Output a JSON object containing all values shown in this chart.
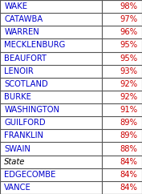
{
  "rows": [
    {
      "label": "WAKE",
      "value": "98%",
      "label_color": "#0000CC",
      "value_color": "#CC0000",
      "italic": false
    },
    {
      "label": "CATAWBA",
      "value": "97%",
      "label_color": "#0000CC",
      "value_color": "#CC0000",
      "italic": false
    },
    {
      "label": "WARREN",
      "value": "96%",
      "label_color": "#0000CC",
      "value_color": "#CC0000",
      "italic": false
    },
    {
      "label": "MECKLENBURG",
      "value": "95%",
      "label_color": "#0000CC",
      "value_color": "#CC0000",
      "italic": false
    },
    {
      "label": "BEAUFORT",
      "value": "95%",
      "label_color": "#0000CC",
      "value_color": "#CC0000",
      "italic": false
    },
    {
      "label": "LENOIR",
      "value": "93%",
      "label_color": "#0000CC",
      "value_color": "#CC0000",
      "italic": false
    },
    {
      "label": "SCOTLAND",
      "value": "92%",
      "label_color": "#0000CC",
      "value_color": "#CC0000",
      "italic": false
    },
    {
      "label": "BURKE",
      "value": "92%",
      "label_color": "#0000CC",
      "value_color": "#CC0000",
      "italic": false
    },
    {
      "label": "WASHINGTON",
      "value": "91%",
      "label_color": "#0000CC",
      "value_color": "#CC0000",
      "italic": false
    },
    {
      "label": "GUILFORD",
      "value": "89%",
      "label_color": "#0000CC",
      "value_color": "#CC0000",
      "italic": false
    },
    {
      "label": "FRANKLIN",
      "value": "89%",
      "label_color": "#0000CC",
      "value_color": "#CC0000",
      "italic": false
    },
    {
      "label": "SWAIN",
      "value": "88%",
      "label_color": "#0000CC",
      "value_color": "#CC0000",
      "italic": false
    },
    {
      "label": "State",
      "value": "84%",
      "label_color": "#000000",
      "value_color": "#CC0000",
      "italic": true
    },
    {
      "label": "EDGECOMBE",
      "value": "84%",
      "label_color": "#0000CC",
      "value_color": "#CC0000",
      "italic": false
    },
    {
      "label": "VANCE",
      "value": "84%",
      "label_color": "#0000CC",
      "value_color": "#CC0000",
      "italic": false
    }
  ],
  "background_color": "#FFFFFF",
  "grid_color": "#555555",
  "font_size": 7.2,
  "col_split": 0.72
}
